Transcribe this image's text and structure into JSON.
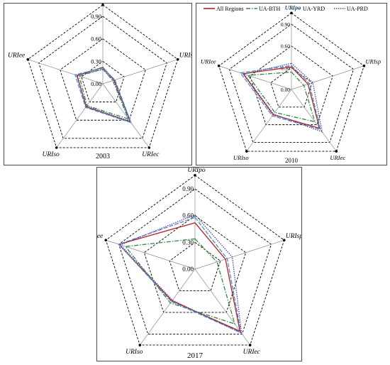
{
  "chart_data": [
    {
      "type": "radar",
      "year_label": "2003",
      "axes": [
        "URIpo",
        "URIsp",
        "URIec",
        "URIso",
        "URIee"
      ],
      "ticks": [
        "0.90",
        "0.60",
        "0.30",
        "0.00"
      ],
      "rlim": [
        0,
        0.9
      ],
      "series": [
        {
          "name": "All Regions",
          "color": "#b22222",
          "dash": "",
          "values": [
            0.22,
            0.16,
            0.63,
            0.38,
            0.36
          ]
        },
        {
          "name": "UA-BTH",
          "color": "#2e8b3e",
          "dash": "6,2,1.5,2",
          "values": [
            0.2,
            0.14,
            0.58,
            0.36,
            0.33
          ]
        },
        {
          "name": "UA-YRD",
          "color": "#4a8fc9",
          "dash": "6,2",
          "values": [
            0.21,
            0.17,
            0.64,
            0.39,
            0.39
          ]
        },
        {
          "name": "UA-PRD",
          "color": "#5b3fa6",
          "dash": "1.5,1.5",
          "values": [
            0.19,
            0.15,
            0.62,
            0.37,
            0.37
          ]
        }
      ]
    },
    {
      "type": "radar",
      "year_label": "2010",
      "axes": [
        "URIpo",
        "URIsp",
        "URIec",
        "URIso",
        "URIee"
      ],
      "ticks": [
        "0.90",
        "0.60",
        "0.30",
        "0.00"
      ],
      "rlim": [
        0,
        0.9
      ],
      "legend": [
        "All Regions",
        "UA-BTH",
        "UA-YRD",
        "UA-PRD"
      ],
      "series": [
        {
          "name": "All Regions",
          "color": "#b22222",
          "dash": "",
          "values": [
            0.31,
            0.24,
            0.66,
            0.43,
            0.7
          ]
        },
        {
          "name": "UA-BTH",
          "color": "#2e8b3e",
          "dash": "6,2,1.5,2",
          "values": [
            0.24,
            0.18,
            0.55,
            0.39,
            0.63
          ]
        },
        {
          "name": "UA-YRD",
          "color": "#4a8fc9",
          "dash": "6,2",
          "values": [
            0.33,
            0.26,
            0.68,
            0.45,
            0.74
          ]
        },
        {
          "name": "UA-PRD",
          "color": "#5b3fa6",
          "dash": "1.5,1.5",
          "values": [
            0.36,
            0.31,
            0.72,
            0.42,
            0.69
          ]
        }
      ]
    },
    {
      "type": "radar",
      "year_label": "2017",
      "axes": [
        "URIpo",
        "URIsp",
        "URIec",
        "URIso",
        "URIee"
      ],
      "ticks": [
        "0.90",
        "0.60",
        "0.30",
        "0.00"
      ],
      "rlim": [
        0,
        0.9
      ],
      "series": [
        {
          "name": "All Regions",
          "color": "#b22222",
          "dash": "",
          "values": [
            0.52,
            0.36,
            0.86,
            0.44,
            0.9
          ]
        },
        {
          "name": "UA-BTH",
          "color": "#2e8b3e",
          "dash": "6,2,1.5,2",
          "values": [
            0.34,
            0.26,
            0.76,
            0.47,
            0.82
          ]
        },
        {
          "name": "UA-YRD",
          "color": "#4a8fc9",
          "dash": "6,2",
          "values": [
            0.58,
            0.38,
            0.88,
            0.45,
            0.9
          ]
        },
        {
          "name": "UA-PRD",
          "color": "#5b3fa6",
          "dash": "1.5,1.5",
          "values": [
            0.61,
            0.44,
            0.89,
            0.43,
            0.88
          ]
        }
      ]
    }
  ]
}
